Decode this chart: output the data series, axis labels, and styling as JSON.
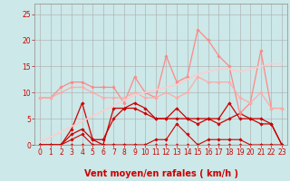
{
  "x": [
    0,
    1,
    2,
    3,
    4,
    5,
    6,
    7,
    8,
    9,
    10,
    11,
    12,
    13,
    14,
    15,
    16,
    17,
    18,
    19,
    20,
    21,
    22,
    23
  ],
  "series": [
    {
      "y": [
        0,
        0,
        0,
        0,
        0,
        0,
        0,
        0,
        0,
        0,
        0,
        0,
        0,
        0,
        0,
        0,
        0,
        0,
        0,
        0,
        0,
        0,
        0,
        0
      ],
      "color": "#cc0000",
      "lw": 0.8,
      "marker": "D",
      "ms": 1.8
    },
    {
      "y": [
        0,
        0,
        0,
        1,
        2,
        0,
        0,
        0,
        0,
        0,
        0,
        1,
        1,
        4,
        2,
        0,
        1,
        1,
        1,
        1,
        0,
        0,
        0,
        0
      ],
      "color": "#cc0000",
      "lw": 0.8,
      "marker": "D",
      "ms": 1.8
    },
    {
      "y": [
        0,
        0,
        0,
        3,
        8,
        1,
        0,
        7,
        7,
        7,
        6,
        5,
        5,
        5,
        5,
        5,
        5,
        5,
        8,
        5,
        5,
        4,
        4,
        0
      ],
      "color": "#cc0000",
      "lw": 0.9,
      "marker": "D",
      "ms": 1.8
    },
    {
      "y": [
        0,
        0,
        0,
        2,
        3,
        1,
        1,
        5,
        7,
        8,
        7,
        5,
        5,
        7,
        5,
        4,
        5,
        4,
        5,
        6,
        5,
        5,
        4,
        0
      ],
      "color": "#cc0000",
      "lw": 0.9,
      "marker": "D",
      "ms": 1.8
    },
    {
      "y": [
        9,
        9,
        11,
        12,
        12,
        11,
        11,
        11,
        8,
        13,
        10,
        9,
        17,
        12,
        13,
        22,
        20,
        17,
        15,
        6,
        8,
        18,
        7,
        7
      ],
      "color": "#ff8888",
      "lw": 0.9,
      "marker": "D",
      "ms": 1.8
    },
    {
      "y": [
        9,
        9,
        10,
        11,
        11,
        10,
        9,
        9,
        9,
        10,
        9,
        9,
        10,
        9,
        10,
        13,
        12,
        12,
        12,
        9,
        8,
        10,
        7,
        7
      ],
      "color": "#ffaaaa",
      "lw": 0.9,
      "marker": "D",
      "ms": 1.8
    },
    {
      "y": [
        0.5,
        1.5,
        2.5,
        3.5,
        4.5,
        5.5,
        6.5,
        7.5,
        8.5,
        9.5,
        10.0,
        10.5,
        11.0,
        11.5,
        12.5,
        13.5,
        14.0,
        14.5,
        14.5,
        14.0,
        14.5,
        15.0,
        15.5,
        15.5
      ],
      "color": "#ffcccc",
      "lw": 1.2,
      "marker": null,
      "ms": 0
    }
  ],
  "wind_dirs": [
    "↙",
    "↖",
    "",
    "",
    "",
    "",
    "",
    "",
    "",
    "",
    "↙",
    "↙",
    "←",
    "↑",
    "↑",
    "",
    "↙",
    "↙",
    "↖",
    "↓",
    "↙",
    "?",
    "↑",
    ""
  ],
  "bg_color": "#cce8e8",
  "grid_color": "#aaaaaa",
  "xlabel": "Vent moyen/en rafales ( km/h )",
  "xlabel_color": "#cc0000",
  "xlabel_fontsize": 7.0,
  "tick_color": "#cc0000",
  "tick_fontsize": 5.5,
  "wind_fontsize": 4.5,
  "ylim": [
    0,
    27
  ],
  "xlim": [
    -0.5,
    23.5
  ],
  "yticks": [
    0,
    5,
    10,
    15,
    20,
    25
  ],
  "xticks": [
    0,
    1,
    2,
    3,
    4,
    5,
    6,
    7,
    8,
    9,
    10,
    11,
    12,
    13,
    14,
    15,
    16,
    17,
    18,
    19,
    20,
    21,
    22,
    23
  ]
}
